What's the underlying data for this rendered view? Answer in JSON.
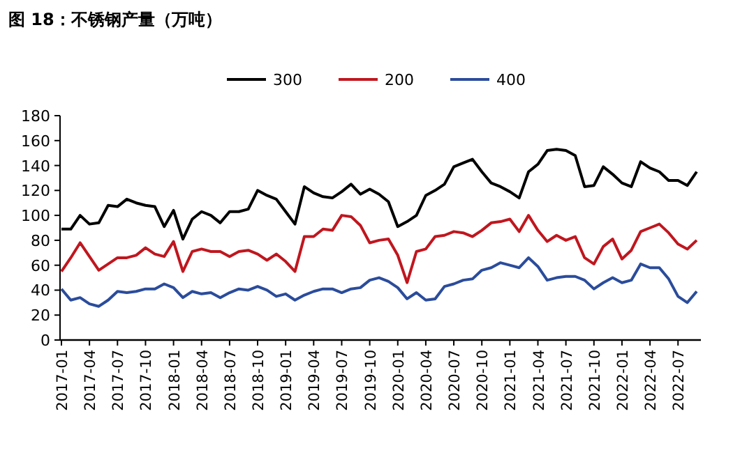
{
  "chart_data": {
    "type": "line",
    "title": "图 18：不锈钢产量（万吨）",
    "categories": [
      "2017-01",
      null,
      null,
      "2017-04",
      null,
      null,
      "2017-07",
      null,
      null,
      "2017-10",
      null,
      null,
      "2018-01",
      null,
      null,
      "2018-04",
      null,
      null,
      "2018-07",
      null,
      null,
      "2018-10",
      null,
      null,
      "2019-01",
      null,
      null,
      "2019-04",
      null,
      null,
      "2019-07",
      null,
      null,
      "2019-10",
      null,
      null,
      "2020-01",
      null,
      null,
      "2020-04",
      null,
      null,
      "2020-07",
      null,
      null,
      "2020-10",
      null,
      null,
      "2021-01",
      null,
      null,
      "2021-04",
      null,
      null,
      "2021-07",
      null,
      null,
      "2021-10",
      null,
      null,
      "2022-01",
      null,
      null,
      "2022-04",
      null,
      null,
      "2022-07",
      null,
      null
    ],
    "series": [
      {
        "name": "300",
        "color": "#000000",
        "values": [
          89,
          89,
          100,
          93,
          94,
          108,
          107,
          113,
          110,
          108,
          107,
          91,
          104,
          81,
          97,
          103,
          100,
          94,
          103,
          103,
          105,
          120,
          116,
          113,
          103,
          93,
          123,
          118,
          115,
          114,
          119,
          125,
          117,
          121,
          117,
          111,
          91,
          95,
          100,
          116,
          120,
          125,
          139,
          142,
          145,
          135,
          126,
          123,
          119,
          114,
          135,
          141,
          152,
          153,
          152,
          148,
          123,
          124,
          139,
          133,
          126,
          123,
          143,
          138,
          135,
          128,
          128,
          124,
          135
        ]
      },
      {
        "name": "200",
        "color": "#c0161e",
        "values": [
          55,
          66,
          78,
          67,
          56,
          61,
          66,
          66,
          68,
          74,
          69,
          67,
          79,
          55,
          71,
          73,
          71,
          71,
          67,
          71,
          72,
          69,
          64,
          69,
          63,
          55,
          83,
          83,
          89,
          88,
          100,
          99,
          92,
          78,
          80,
          81,
          68,
          46,
          71,
          73,
          83,
          84,
          87,
          86,
          83,
          88,
          94,
          95,
          97,
          87,
          100,
          88,
          79,
          84,
          80,
          83,
          66,
          61,
          75,
          81,
          65,
          72,
          87,
          90,
          93,
          86,
          77,
          73,
          80
        ]
      },
      {
        "name": "400",
        "color": "#2b4c9b",
        "values": [
          41,
          32,
          34,
          29,
          27,
          32,
          39,
          38,
          39,
          41,
          41,
          45,
          42,
          34,
          39,
          37,
          38,
          34,
          38,
          41,
          40,
          43,
          40,
          35,
          37,
          32,
          36,
          39,
          41,
          41,
          38,
          41,
          42,
          48,
          50,
          47,
          42,
          33,
          38,
          32,
          33,
          43,
          45,
          48,
          49,
          56,
          58,
          62,
          60,
          58,
          66,
          59,
          48,
          50,
          51,
          51,
          48,
          41,
          46,
          50,
          46,
          48,
          61,
          58,
          58,
          49,
          35,
          30,
          39
        ]
      }
    ],
    "ylim": [
      0,
      180
    ],
    "yticks": [
      0,
      20,
      40,
      60,
      80,
      100,
      120,
      140,
      160,
      180
    ],
    "legend": "top",
    "grid": false
  }
}
